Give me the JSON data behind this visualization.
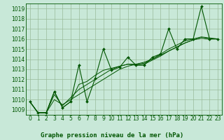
{
  "title": "Graphe pression niveau de la mer (hPa)",
  "background_color": "#c8e8d8",
  "grid_color": "#99bb99",
  "line_color": "#005500",
  "marker_color": "#005500",
  "xlim": [
    -0.5,
    23.5
  ],
  "ylim": [
    1008.5,
    1019.5
  ],
  "yticks": [
    1009,
    1010,
    1011,
    1012,
    1013,
    1014,
    1015,
    1016,
    1017,
    1018,
    1019
  ],
  "xticks": [
    0,
    1,
    2,
    3,
    4,
    5,
    6,
    7,
    8,
    9,
    10,
    11,
    12,
    13,
    14,
    15,
    16,
    17,
    18,
    19,
    20,
    21,
    22,
    23
  ],
  "series1": [
    1009.8,
    1008.7,
    1008.7,
    1010.8,
    1009.2,
    1009.8,
    1013.4,
    1009.8,
    1012.1,
    1015.0,
    1012.9,
    1013.2,
    1014.2,
    1013.4,
    1013.4,
    1014.2,
    1014.5,
    1017.0,
    1015.0,
    1016.0,
    1016.0,
    1019.2,
    1016.0,
    1016.0
  ],
  "series2": [
    1009.8,
    1008.7,
    1008.7,
    1010.8,
    1009.2,
    1009.8,
    1011.5,
    1011.8,
    1012.4,
    1012.9,
    1013.1,
    1013.3,
    1013.5,
    1013.4,
    1013.5,
    1013.9,
    1014.3,
    1014.8,
    1015.2,
    1015.6,
    1015.9,
    1016.1,
    1016.0,
    1016.0
  ],
  "series3": [
    1009.8,
    1008.7,
    1008.7,
    1010.5,
    1009.4,
    1010.2,
    1011.0,
    1011.5,
    1012.0,
    1012.5,
    1013.0,
    1013.3,
    1013.5,
    1013.5,
    1013.6,
    1014.0,
    1014.5,
    1015.0,
    1015.4,
    1015.8,
    1016.0,
    1016.2,
    1016.1,
    1016.0
  ],
  "series4": [
    1009.8,
    1008.7,
    1008.7,
    1010.0,
    1009.5,
    1010.0,
    1010.5,
    1011.0,
    1011.5,
    1012.0,
    1012.5,
    1013.0,
    1013.3,
    1013.5,
    1013.7,
    1014.0,
    1014.4,
    1014.8,
    1015.2,
    1015.6,
    1015.9,
    1016.1,
    1016.0,
    1016.0
  ],
  "lw_main": 0.8,
  "lw_trend": 0.7,
  "markersize": 2.0,
  "tick_fontsize": 5.5,
  "title_fontsize": 6.5
}
